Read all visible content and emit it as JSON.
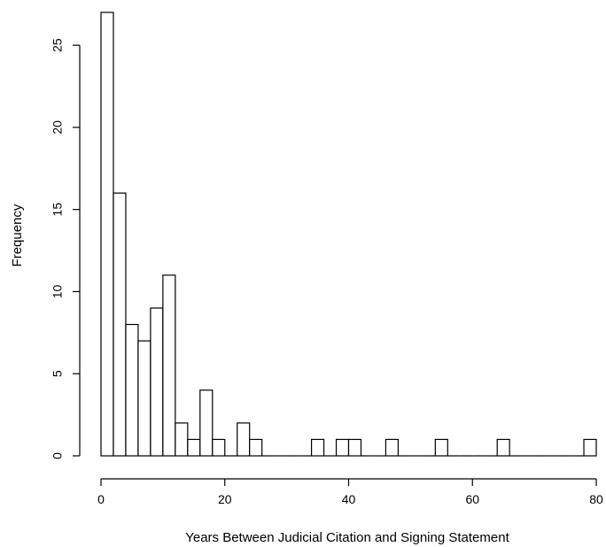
{
  "chart_data": {
    "type": "bar",
    "title": "",
    "xlabel": "Years Between Judicial Citation and Signing Statement",
    "ylabel": "Frequency",
    "xlim": [
      0,
      80
    ],
    "ylim": [
      0,
      27
    ],
    "bin_width": 2,
    "grid": false,
    "bar_fill": "#ffffff",
    "bar_stroke": "#000000",
    "x_ticks": [
      0,
      20,
      40,
      60,
      80
    ],
    "y_ticks": [
      0,
      5,
      10,
      15,
      20,
      25
    ],
    "bins": [
      {
        "x0": 0,
        "x1": 2,
        "count": 27
      },
      {
        "x0": 2,
        "x1": 4,
        "count": 16
      },
      {
        "x0": 4,
        "x1": 6,
        "count": 8
      },
      {
        "x0": 6,
        "x1": 8,
        "count": 7
      },
      {
        "x0": 8,
        "x1": 10,
        "count": 9
      },
      {
        "x0": 10,
        "x1": 12,
        "count": 11
      },
      {
        "x0": 12,
        "x1": 14,
        "count": 2
      },
      {
        "x0": 14,
        "x1": 16,
        "count": 1
      },
      {
        "x0": 16,
        "x1": 18,
        "count": 4
      },
      {
        "x0": 18,
        "x1": 20,
        "count": 1
      },
      {
        "x0": 20,
        "x1": 22,
        "count": 0
      },
      {
        "x0": 22,
        "x1": 24,
        "count": 2
      },
      {
        "x0": 24,
        "x1": 26,
        "count": 1
      },
      {
        "x0": 26,
        "x1": 28,
        "count": 0
      },
      {
        "x0": 28,
        "x1": 30,
        "count": 0
      },
      {
        "x0": 30,
        "x1": 32,
        "count": 0
      },
      {
        "x0": 32,
        "x1": 34,
        "count": 0
      },
      {
        "x0": 34,
        "x1": 36,
        "count": 1
      },
      {
        "x0": 36,
        "x1": 38,
        "count": 0
      },
      {
        "x0": 38,
        "x1": 40,
        "count": 1
      },
      {
        "x0": 40,
        "x1": 42,
        "count": 1
      },
      {
        "x0": 42,
        "x1": 44,
        "count": 0
      },
      {
        "x0": 44,
        "x1": 46,
        "count": 0
      },
      {
        "x0": 46,
        "x1": 48,
        "count": 1
      },
      {
        "x0": 48,
        "x1": 50,
        "count": 0
      },
      {
        "x0": 50,
        "x1": 52,
        "count": 0
      },
      {
        "x0": 52,
        "x1": 54,
        "count": 0
      },
      {
        "x0": 54,
        "x1": 56,
        "count": 1
      },
      {
        "x0": 56,
        "x1": 58,
        "count": 0
      },
      {
        "x0": 58,
        "x1": 60,
        "count": 0
      },
      {
        "x0": 60,
        "x1": 62,
        "count": 0
      },
      {
        "x0": 62,
        "x1": 64,
        "count": 0
      },
      {
        "x0": 64,
        "x1": 66,
        "count": 1
      },
      {
        "x0": 66,
        "x1": 68,
        "count": 0
      },
      {
        "x0": 68,
        "x1": 70,
        "count": 0
      },
      {
        "x0": 70,
        "x1": 72,
        "count": 0
      },
      {
        "x0": 72,
        "x1": 74,
        "count": 0
      },
      {
        "x0": 74,
        "x1": 76,
        "count": 0
      },
      {
        "x0": 76,
        "x1": 78,
        "count": 0
      },
      {
        "x0": 78,
        "x1": 80,
        "count": 1
      }
    ]
  }
}
